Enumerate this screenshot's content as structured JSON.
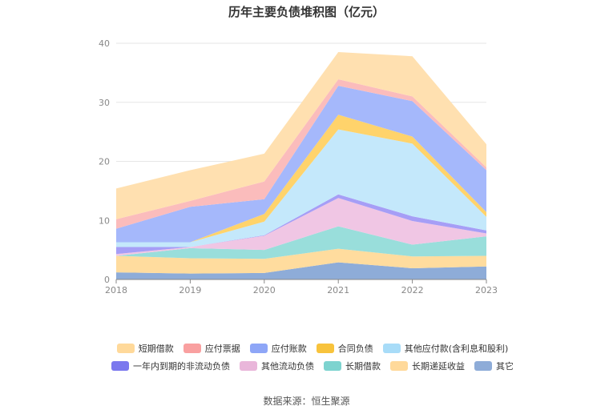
{
  "chart_data": {
    "type": "area",
    "stacked": true,
    "title": "历年主要负债堆积图（亿元）",
    "x": [
      "2018",
      "2019",
      "2020",
      "2021",
      "2022",
      "2023"
    ],
    "ylim": [
      0,
      40
    ],
    "yticks": [
      0,
      10,
      20,
      30,
      40
    ],
    "grid": true,
    "legend_position": "bottom",
    "series": [
      {
        "name": "其它",
        "color": "#8eacd8",
        "values": [
          1.2,
          1.0,
          1.1,
          2.9,
          1.9,
          2.2
        ]
      },
      {
        "name": "长期递延收益",
        "color": "#ffdc9e",
        "values": [
          2.8,
          2.6,
          2.4,
          2.3,
          2.0,
          1.8
        ]
      },
      {
        "name": "长期借款",
        "color": "#99dedb",
        "values": [
          0.0,
          1.7,
          1.5,
          3.8,
          2.0,
          3.3
        ]
      },
      {
        "name": "其他流动负债",
        "color": "#f0c6e4",
        "values": [
          0.3,
          0.2,
          2.4,
          4.8,
          4.0,
          0.5
        ]
      },
      {
        "name": "一年内到期的非流动负债",
        "color": "#a69ef6",
        "values": [
          1.2,
          0.0,
          0.1,
          0.6,
          0.8,
          0.5
        ]
      },
      {
        "name": "其他应付款(含利息和股利)",
        "color": "#c4e8fb",
        "values": [
          0.8,
          0.8,
          2.3,
          11.0,
          12.3,
          2.3
        ]
      },
      {
        "name": "合同负债",
        "color": "#ffd36b",
        "values": [
          0.0,
          0.0,
          1.3,
          2.5,
          1.2,
          0.8
        ]
      },
      {
        "name": "应付账款",
        "color": "#a5b8fb",
        "values": [
          2.3,
          6.0,
          2.5,
          4.9,
          6.0,
          7.1
        ]
      },
      {
        "name": "应付票据",
        "color": "#fbbcbc",
        "values": [
          1.6,
          1.0,
          3.0,
          1.1,
          0.8,
          0.5
        ]
      },
      {
        "name": "短期借款",
        "color": "#ffe0b0",
        "values": [
          5.2,
          5.2,
          4.7,
          4.6,
          6.8,
          3.9
        ]
      }
    ],
    "legend_order": [
      "短期借款",
      "应付票据",
      "应付账款",
      "合同负债",
      "其他应付款(含利息和股利)",
      "一年内到期的非流动负债",
      "其他流动负债",
      "长期借款",
      "长期递延收益",
      "其它"
    ],
    "legend_colors": {
      "短期借款": "#ffd99a",
      "应付票据": "#f9a0a0",
      "应付账款": "#8ea6f7",
      "合同负债": "#f8c33c",
      "其他应付款(含利息和股利)": "#a8dcf8",
      "一年内到期的非流动负债": "#7b78ee",
      "其他流动负债": "#e9b6da",
      "长期借款": "#7dd3cf",
      "长期递延收益": "#ffd99a",
      "其它": "#8eacd8"
    }
  },
  "source": "数据来源：恒生聚源"
}
